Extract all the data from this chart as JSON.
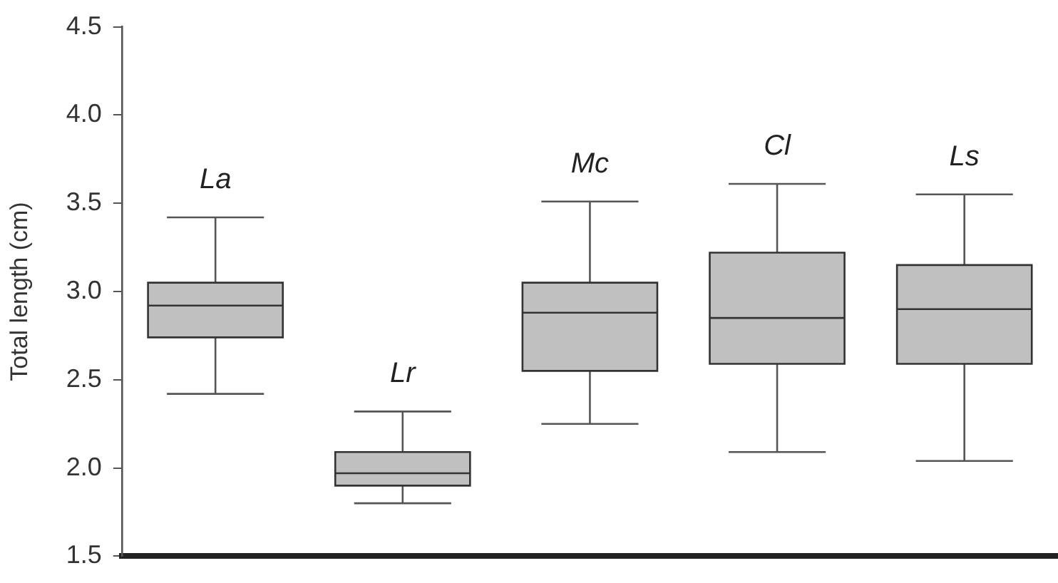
{
  "chart_data": {
    "type": "box",
    "ylabel": "Total length (cm)",
    "categories": [
      "La",
      "Lr",
      "Mc",
      "Cl",
      "Ls"
    ],
    "color": "#c0c0c0",
    "boxes": [
      {
        "low": 2.42,
        "q1": 2.74,
        "median": 2.92,
        "q3": 3.05,
        "high": 3.42
      },
      {
        "low": 1.8,
        "q1": 1.9,
        "median": 1.97,
        "q3": 2.09,
        "high": 2.32
      },
      {
        "low": 2.25,
        "q1": 2.55,
        "median": 2.88,
        "q3": 3.05,
        "high": 3.51
      },
      {
        "low": 2.09,
        "q1": 2.59,
        "median": 2.85,
        "q3": 3.22,
        "high": 3.61
      },
      {
        "low": 2.04,
        "q1": 2.59,
        "median": 2.9,
        "q3": 3.15,
        "high": 3.55
      }
    ],
    "ylim": [
      1.5,
      4.5
    ],
    "yticks": [
      {
        "value": 1.5,
        "label": "1.5"
      },
      {
        "value": 2,
        "label": "2.0"
      },
      {
        "value": 2.5,
        "label": "2.5"
      },
      {
        "value": 3,
        "label": "3.0"
      },
      {
        "value": 3.5,
        "label": "3.5"
      },
      {
        "value": 4,
        "label": "4.0"
      },
      {
        "value": 4.5,
        "label": "4.5"
      }
    ]
  }
}
